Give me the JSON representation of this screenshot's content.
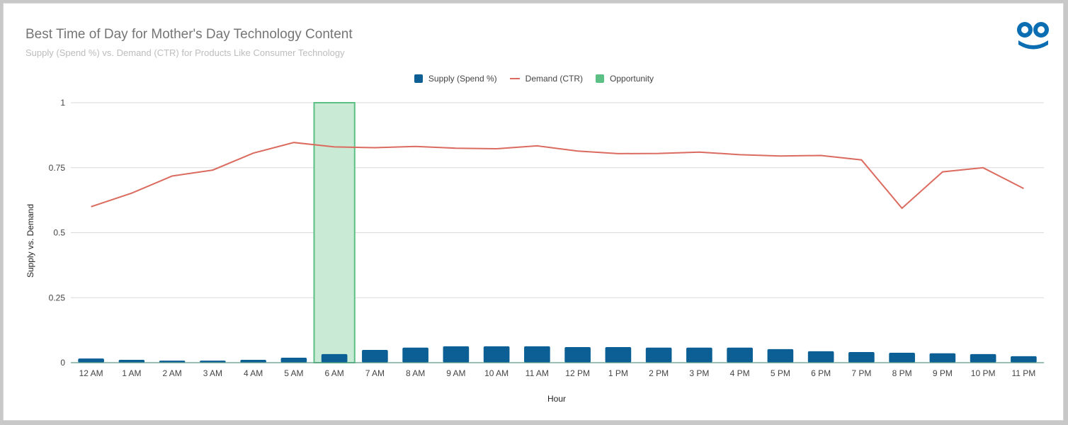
{
  "chart_data": {
    "type": "bar",
    "title": "Best Time of Day for Mother's Day Technology Content",
    "subtitle": "Supply (Spend %) vs. Demand (CTR) for Products Like Consumer Technology",
    "xlabel": "Hour",
    "ylabel": "Supply vs. Demand",
    "ylim": [
      0,
      1
    ],
    "yticks": [
      "0",
      "0.25",
      "0.5",
      "0.75",
      "1"
    ],
    "grid": true,
    "legend_position": "top",
    "categories": [
      "12 AM",
      "1 AM",
      "2 AM",
      "3 AM",
      "4 AM",
      "5 AM",
      "6 AM",
      "7 AM",
      "8 AM",
      "9 AM",
      "10 AM",
      "11 AM",
      "12 PM",
      "1 PM",
      "2 PM",
      "3 PM",
      "4 PM",
      "5 PM",
      "6 PM",
      "7 PM",
      "8 PM",
      "9 PM",
      "10 PM",
      "11 PM"
    ],
    "series": [
      {
        "name": "Supply (Spend %)",
        "type": "bar",
        "color": "#0b5f94",
        "values": [
          0.016,
          0.011,
          0.008,
          0.008,
          0.011,
          0.019,
          0.033,
          0.049,
          0.058,
          0.063,
          0.063,
          0.063,
          0.06,
          0.06,
          0.058,
          0.058,
          0.058,
          0.052,
          0.044,
          0.041,
          0.038,
          0.036,
          0.033,
          0.025
        ]
      },
      {
        "name": "Demand (CTR)",
        "type": "line",
        "color": "#db6b5f",
        "values": [
          0.6,
          0.652,
          0.718,
          0.741,
          0.806,
          0.847,
          0.83,
          0.827,
          0.832,
          0.825,
          0.823,
          0.834,
          0.814,
          0.804,
          0.805,
          0.81,
          0.8,
          0.795,
          0.797,
          0.78,
          0.594,
          0.734,
          0.75,
          0.67
        ]
      },
      {
        "name": "Opportunity",
        "type": "bar",
        "color": "#5cbf84",
        "fill": "#c9ebd6",
        "values": [
          0,
          0,
          0,
          0,
          0,
          0,
          1,
          0,
          0,
          0,
          0,
          0,
          0,
          0,
          0,
          0,
          0,
          0,
          0,
          0,
          0,
          0,
          0,
          0
        ]
      }
    ]
  },
  "logo": {
    "name": "brand-logo",
    "color": "#0b6eb3"
  }
}
